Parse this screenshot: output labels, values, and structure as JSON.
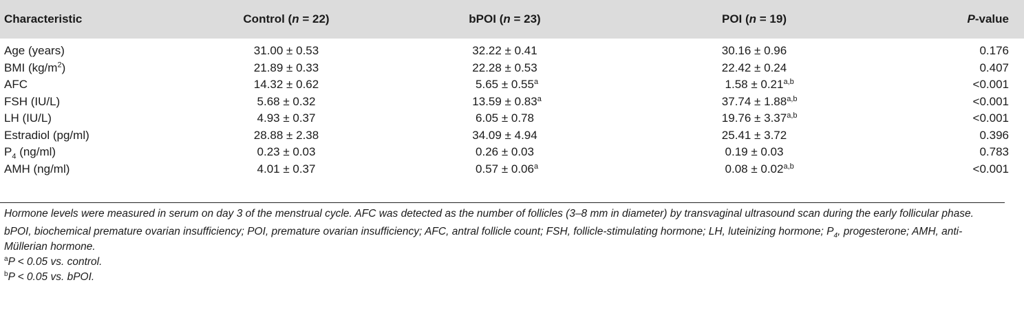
{
  "header": {
    "col1": "Characteristic",
    "col2_pre": "Control (",
    "col2_n": "n",
    "col2_post": " = 22)",
    "col3_pre": "bPOI (",
    "col3_n": "n",
    "col3_post": " = 23)",
    "col4_pre": "POI (",
    "col4_n": "n",
    "col4_post": " = 19)",
    "col5_p": "P",
    "col5_post": "-value"
  },
  "rows": [
    {
      "label": "Age (years)",
      "label_sup": "",
      "label_sub": "",
      "label_post": "",
      "control": "31.00 ± 0.53",
      "bpoi": "32.22 ± 0.41",
      "bpoi_mark": "",
      "poi": "30.16 ± 0.96",
      "poi_mark": "",
      "p": "0.176"
    },
    {
      "label": "BMI (kg/m",
      "label_sup": "2",
      "label_sub": "",
      "label_post": ")",
      "control": "21.89 ± 0.33",
      "bpoi": "22.28 ± 0.53",
      "bpoi_mark": "",
      "poi": "22.42 ± 0.24",
      "poi_mark": "",
      "p": "0.407"
    },
    {
      "label": "AFC",
      "label_sup": "",
      "label_sub": "",
      "label_post": "",
      "control": "14.32 ± 0.62",
      "bpoi": "5.65 ± 0.55",
      "bpoi_mark": "a",
      "poi": "1.58 ± 0.21",
      "poi_mark": "a,b",
      "p": "<0.001"
    },
    {
      "label": "FSH (IU/L)",
      "label_sup": "",
      "label_sub": "",
      "label_post": "",
      "control": "5.68 ± 0.32",
      "bpoi": "13.59 ± 0.83",
      "bpoi_mark": "a",
      "poi": "37.74 ± 1.88",
      "poi_mark": "a,b",
      "p": "<0.001"
    },
    {
      "label": "LH (IU/L)",
      "label_sup": "",
      "label_sub": "",
      "label_post": "",
      "control": "4.93 ± 0.37",
      "bpoi": "6.05 ± 0.78",
      "bpoi_mark": "",
      "poi": "19.76 ± 3.37",
      "poi_mark": "a,b",
      "p": "<0.001"
    },
    {
      "label": "Estradiol (pg/ml)",
      "label_sup": "",
      "label_sub": "",
      "label_post": "",
      "control": "28.88 ± 2.38",
      "bpoi": "34.09 ± 4.94",
      "bpoi_mark": "",
      "poi": "25.41 ± 3.72",
      "poi_mark": "",
      "p": "0.396"
    },
    {
      "label": "P",
      "label_sup": "",
      "label_sub": "4",
      "label_post": " (ng/ml)",
      "control": "0.23 ± 0.03",
      "bpoi": "0.26 ± 0.03",
      "bpoi_mark": "",
      "poi": "0.19 ± 0.03",
      "poi_mark": "",
      "p": "0.783"
    },
    {
      "label": "AMH (ng/ml)",
      "label_sup": "",
      "label_sub": "",
      "label_post": "",
      "control": "4.01 ± 0.37",
      "bpoi": "0.57 ± 0.06",
      "bpoi_mark": "a",
      "poi": "0.08 ± 0.02",
      "poi_mark": "a,b",
      "p": "<0.001"
    }
  ],
  "footnotes": {
    "note1": "Hormone levels were measured in serum on day 3 of the menstrual cycle. AFC was detected as the number of follicles (3–8 mm in diameter) by transvaginal ultrasound scan during the early follicular phase.",
    "abbr_pre": "bPOI, biochemical premature ovarian insufficiency; POI, premature ovarian insufficiency; AFC, antral follicle count; FSH, follicle-stimulating hormone; LH, luteinizing hormone; P",
    "abbr_sub": "4",
    "abbr_post": ", progesterone; AMH, anti-Müllerian hormone.",
    "a_mark": "a",
    "a_text": "P < 0.05 vs. control.",
    "b_mark": "b",
    "b_text": "P < 0.05 vs. bPOI."
  }
}
